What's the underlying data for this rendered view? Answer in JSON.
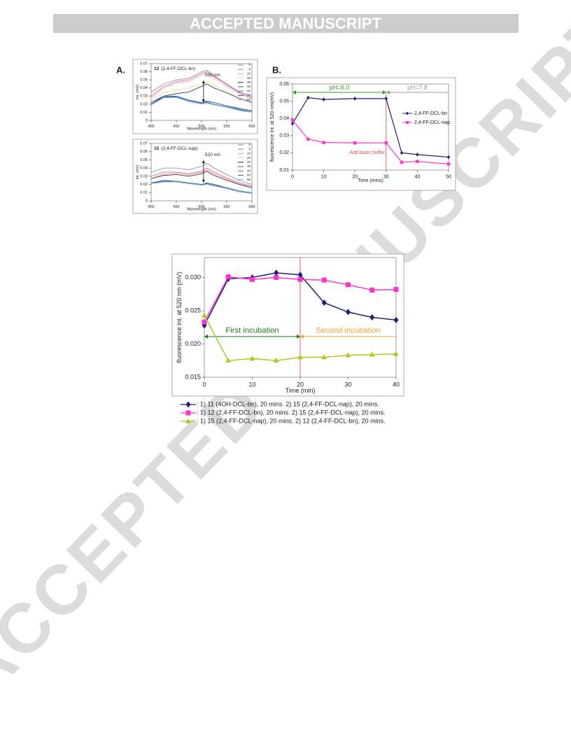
{
  "header": {
    "banner": "ACCEPTED MANUSCRIPT",
    "watermark": "ACCEPTED MANUSCRIPT"
  },
  "panel_labels": [
    "A.",
    "B."
  ],
  "chart_data": [
    {
      "type": "line",
      "title_number": "12",
      "title": "(2,4-FF-DCL-bn)",
      "annotation": "520 nm",
      "xlabel": "Wavelength (nm)",
      "ylabel": "Int. (mV)",
      "x": [
        400,
        425,
        450,
        475,
        500,
        510,
        525,
        550,
        575,
        600
      ],
      "xlim": [
        400,
        600
      ],
      "xticks": [
        400,
        450,
        500,
        550,
        600
      ],
      "ylim": [
        0,
        0.07
      ],
      "yticks": [
        0,
        0.01,
        0.02,
        0.03,
        0.04,
        0.05,
        0.06,
        0.07
      ],
      "series": [
        {
          "name": "0",
          "color": "#888888",
          "values": [
            0.035,
            0.045,
            0.05,
            0.052,
            0.06,
            0.062,
            0.055,
            0.045,
            0.035,
            0.03
          ]
        },
        {
          "name": "5",
          "color": "#e0609a",
          "values": [
            0.03,
            0.042,
            0.048,
            0.05,
            0.058,
            0.06,
            0.054,
            0.044,
            0.034,
            0.028
          ]
        },
        {
          "name": "10",
          "color": "#f0a0c0",
          "values": [
            0.028,
            0.04,
            0.046,
            0.048,
            0.056,
            0.058,
            0.052,
            0.042,
            0.033,
            0.027
          ]
        },
        {
          "name": "20",
          "color": "#e8e070",
          "values": [
            0.025,
            0.034,
            0.038,
            0.04,
            0.045,
            0.047,
            0.043,
            0.036,
            0.029,
            0.024
          ]
        },
        {
          "name": "30",
          "color": "#202060",
          "values": [
            0.022,
            0.03,
            0.033,
            0.035,
            0.042,
            0.045,
            0.04,
            0.034,
            0.027,
            0.022
          ]
        },
        {
          "name": "35",
          "color": "#8040a0",
          "values": [
            0.02,
            0.028,
            0.03,
            0.025,
            0.022,
            0.023,
            0.022,
            0.018,
            0.015,
            0.012
          ]
        },
        {
          "name": "40",
          "color": "#208080",
          "values": [
            0.02,
            0.03,
            0.03,
            0.025,
            0.022,
            0.024,
            0.022,
            0.018,
            0.014,
            0.011
          ]
        },
        {
          "name": "50",
          "color": "#3050c0",
          "values": [
            0.02,
            0.029,
            0.029,
            0.024,
            0.021,
            0.022,
            0.02,
            0.017,
            0.013,
            0.01
          ]
        },
        {
          "name": "60",
          "color": "#80b0e0",
          "values": [
            0.019,
            0.028,
            0.028,
            0.023,
            0.02,
            0.021,
            0.019,
            0.016,
            0.012,
            0.01
          ]
        }
      ]
    },
    {
      "type": "line",
      "title_number": "15",
      "title": "(2,4-FF-DCL-nap)",
      "annotation": "520 nm",
      "xlabel": "Wavelength (nm)",
      "ylabel": "Int. (mV)",
      "x": [
        400,
        425,
        450,
        475,
        500,
        510,
        525,
        550,
        575,
        600
      ],
      "xlim": [
        400,
        600
      ],
      "xticks": [
        400,
        450,
        500,
        550,
        600
      ],
      "ylim": [
        0,
        0.07
      ],
      "yticks": [
        0,
        0.01,
        0.02,
        0.03,
        0.04,
        0.05,
        0.06,
        0.07
      ],
      "series": [
        {
          "name": "0",
          "color": "#888888",
          "values": [
            0.035,
            0.04,
            0.04,
            0.038,
            0.042,
            0.046,
            0.04,
            0.032,
            0.025,
            0.02
          ]
        },
        {
          "name": "5",
          "color": "#e0609a",
          "values": [
            0.03,
            0.035,
            0.035,
            0.033,
            0.036,
            0.04,
            0.035,
            0.028,
            0.022,
            0.018
          ]
        },
        {
          "name": "10",
          "color": "#f0a0c0",
          "values": [
            0.028,
            0.033,
            0.034,
            0.032,
            0.035,
            0.038,
            0.033,
            0.027,
            0.021,
            0.017
          ]
        },
        {
          "name": "20",
          "color": "#e8e070",
          "values": [
            0.028,
            0.032,
            0.033,
            0.031,
            0.034,
            0.037,
            0.032,
            0.026,
            0.02,
            0.016
          ]
        },
        {
          "name": "30",
          "color": "#202060",
          "values": [
            0.027,
            0.031,
            0.032,
            0.03,
            0.033,
            0.036,
            0.031,
            0.025,
            0.02,
            0.016
          ]
        },
        {
          "name": "35",
          "color": "#8040a0",
          "values": [
            0.022,
            0.024,
            0.024,
            0.022,
            0.02,
            0.022,
            0.02,
            0.016,
            0.012,
            0.01
          ]
        },
        {
          "name": "40",
          "color": "#208080",
          "values": [
            0.022,
            0.025,
            0.024,
            0.022,
            0.02,
            0.022,
            0.02,
            0.016,
            0.012,
            0.01
          ]
        },
        {
          "name": "50",
          "color": "#3050c0",
          "values": [
            0.021,
            0.024,
            0.023,
            0.021,
            0.019,
            0.021,
            0.019,
            0.015,
            0.011,
            0.009
          ]
        },
        {
          "name": "60",
          "color": "#80b0e0",
          "values": [
            0.021,
            0.023,
            0.023,
            0.021,
            0.019,
            0.02,
            0.018,
            0.015,
            0.011,
            0.009
          ]
        }
      ]
    },
    {
      "type": "line",
      "xlabel": "Time (mins)",
      "ylabel": "fluorescence int. at 520 nm(mV)",
      "x": [
        0,
        5,
        10,
        20,
        30,
        35,
        40,
        50
      ],
      "xlim": [
        0,
        50
      ],
      "xticks": [
        0,
        10,
        20,
        30,
        40,
        50
      ],
      "ylim": [
        0.01,
        0.06
      ],
      "yticks": [
        0.01,
        0.02,
        0.03,
        0.04,
        0.05,
        0.06
      ],
      "event_x": 30,
      "event_label": "Add basic buffer",
      "event_color": "#e05050",
      "span_labels": [
        "pH=6.0",
        "pH=7.8"
      ],
      "span_colors": [
        "#2ca02c",
        "#999999"
      ],
      "series": [
        {
          "name": "2,4-FF-DCL-bn",
          "color": "#1f1f7a",
          "marker": "diamond",
          "values": [
            0.037,
            0.052,
            0.051,
            0.0515,
            0.0515,
            0.02,
            0.019,
            0.0175
          ]
        },
        {
          "name": "2,4-FF-DCL-nap",
          "color": "#ff33cc",
          "marker": "square",
          "values": [
            0.039,
            0.028,
            0.026,
            0.0258,
            0.0258,
            0.0145,
            0.015,
            0.0135
          ]
        }
      ]
    },
    {
      "type": "line",
      "xlabel": "Time (min)",
      "ylabel": "fluorescence int. at 520 nm (mV)",
      "x": [
        0,
        5,
        10,
        15,
        20,
        25,
        30,
        35,
        40
      ],
      "xlim": [
        0,
        40
      ],
      "xticks": [
        0,
        10,
        20,
        30,
        40
      ],
      "ylim": [
        0.015,
        0.033
      ],
      "yticks": [
        0.015,
        {
          "value": 0.02,
          "label": "0.020"
        },
        0.025,
        {
          "value": 0.03,
          "label": "0.030"
        }
      ],
      "event_x": 20,
      "event_color": "#e05050",
      "span_labels": [
        "First incubation",
        "Second incubation"
      ],
      "span_colors": [
        "#1a7a1a",
        "#f0a030"
      ],
      "series": [
        {
          "name": ": 1) 11 (4OH-DCL-bn), 20 mins. 2) 15 (2,4-FF-DCL-nap), 20 mins.",
          "color": "#1f1f7a",
          "marker": "diamond",
          "values": [
            0.0228,
            0.0298,
            0.03,
            0.0307,
            0.0304,
            0.0262,
            0.0248,
            0.024,
            0.0236
          ]
        },
        {
          "name": ": 1) 12 (2,4-FF-DCL-bn), 20 mins. 2) 15 (2,4-FF-DCL-nap), 20 mins.",
          "color": "#ff33cc",
          "marker": "square",
          "values": [
            0.0233,
            0.0301,
            0.0297,
            0.03,
            0.0297,
            0.0296,
            0.0289,
            0.0281,
            0.0282
          ]
        },
        {
          "name": ": 1) 15 (2,4-FF-DCL-nap), 20 mins. 2) 12 (2,4-FF-DCL-bn), 20 mins.",
          "color": "#a8cc20",
          "marker": "triangle",
          "values": [
            0.0243,
            0.0175,
            0.0178,
            0.0175,
            0.018,
            0.018,
            0.0183,
            0.0184,
            0.0185
          ]
        }
      ]
    }
  ]
}
